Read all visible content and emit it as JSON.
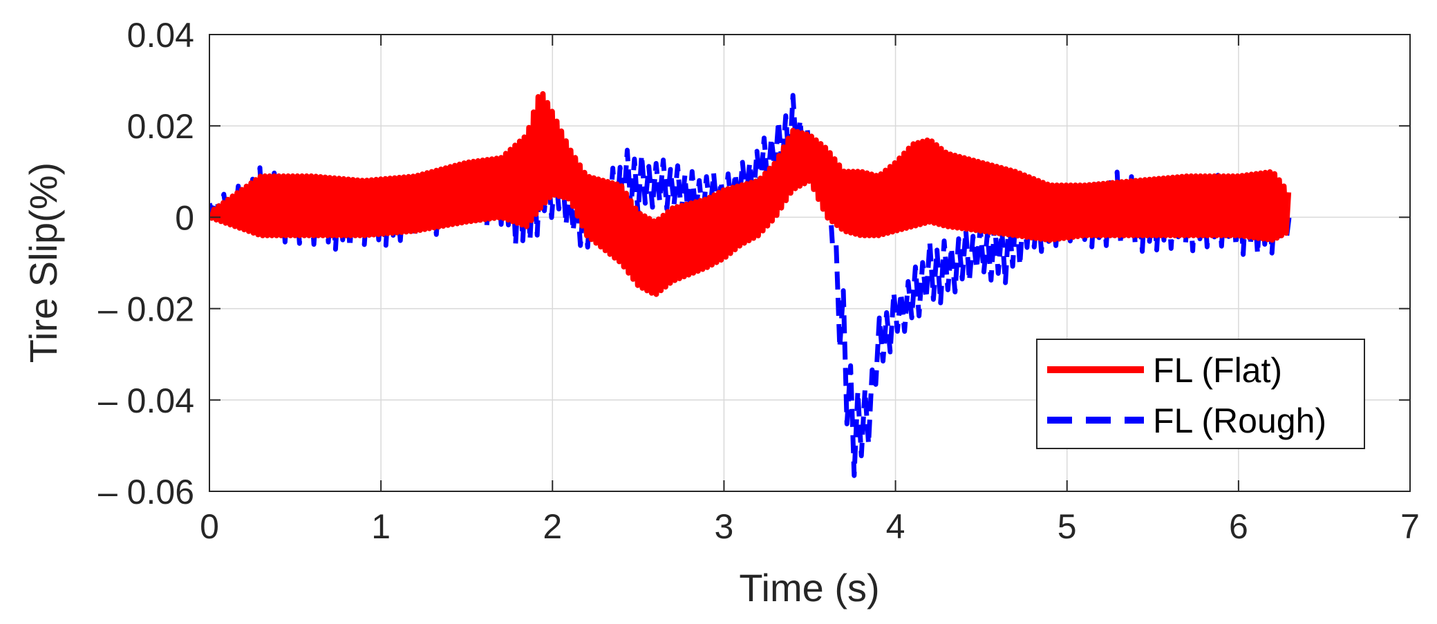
{
  "chart_data": {
    "type": "line",
    "title": "",
    "xlabel": "Time (s)",
    "ylabel": "Tire Slip(%)",
    "xlim": [
      0,
      7
    ],
    "ylim": [
      -0.06,
      0.04
    ],
    "xticks": [
      0,
      1,
      2,
      3,
      4,
      5,
      6,
      7
    ],
    "xtick_labels": [
      "0",
      "1",
      "2",
      "3",
      "4",
      "5",
      "6",
      "7"
    ],
    "yticks": [
      0.04,
      0.02,
      0,
      -0.02,
      -0.04,
      -0.06
    ],
    "ytick_labels": [
      "0.04",
      "0.02",
      "0",
      "– 0.02",
      "– 0.04",
      "– 0.06"
    ],
    "grid": true,
    "legend_position": "bottom-right",
    "series": [
      {
        "name": "FL (Flat)",
        "color": "#ff0000",
        "line_style": "solid",
        "envelope": {
          "x": [
            0,
            0.3,
            0.6,
            0.9,
            1.2,
            1.5,
            1.7,
            1.85,
            1.93,
            2.0,
            2.1,
            2.2,
            2.4,
            2.5,
            2.6,
            2.7,
            2.9,
            3.0,
            3.1,
            3.2,
            3.3,
            3.4,
            3.5,
            3.6,
            3.7,
            3.8,
            3.9,
            4.0,
            4.1,
            4.2,
            4.3,
            4.5,
            4.7,
            4.9,
            5.1,
            5.4,
            5.7,
            6.0,
            6.2,
            6.3
          ],
          "upper": [
            0.001,
            0.009,
            0.009,
            0.008,
            0.009,
            0.012,
            0.013,
            0.018,
            0.028,
            0.023,
            0.015,
            0.009,
            0.007,
            0.001,
            -0.001,
            0.002,
            0.004,
            0.006,
            0.007,
            0.008,
            0.012,
            0.019,
            0.018,
            0.015,
            0.01,
            0.01,
            0.009,
            0.012,
            0.016,
            0.017,
            0.014,
            0.012,
            0.01,
            0.007,
            0.007,
            0.008,
            0.009,
            0.009,
            0.01,
            0.005
          ],
          "lower": [
            0.0,
            -0.004,
            -0.004,
            -0.004,
            -0.003,
            -0.001,
            0.0,
            -0.002,
            0.002,
            0.005,
            0.004,
            -0.004,
            -0.01,
            -0.015,
            -0.017,
            -0.014,
            -0.011,
            -0.009,
            -0.006,
            -0.004,
            0.0,
            0.006,
            0.008,
            0.0,
            -0.003,
            -0.004,
            -0.004,
            -0.003,
            -0.002,
            -0.001,
            -0.002,
            -0.003,
            -0.004,
            -0.005,
            -0.004,
            -0.004,
            -0.004,
            -0.004,
            -0.005,
            -0.003
          ]
        }
      },
      {
        "name": "FL (Rough)",
        "color": "#0000ff",
        "line_style": "dashed",
        "envelope": {
          "x": [
            0,
            0.3,
            0.6,
            0.9,
            1.2,
            1.5,
            1.7,
            1.83,
            1.95,
            2.05,
            2.15,
            2.3,
            2.45,
            2.6,
            2.8,
            3.0,
            3.2,
            3.3,
            3.4,
            3.5,
            3.6,
            3.65,
            3.7,
            3.75,
            3.8,
            3.85,
            3.9,
            4.0,
            4.1,
            4.2,
            4.3,
            4.5,
            4.65,
            4.8,
            5.0,
            5.3,
            5.6,
            5.8,
            6.0,
            6.2,
            6.3
          ],
          "upper": [
            0.003,
            0.011,
            0.008,
            0.007,
            0.008,
            0.01,
            0.012,
            0.012,
            0.016,
            0.01,
            0.006,
            0.008,
            0.016,
            0.013,
            0.011,
            0.009,
            0.016,
            0.02,
            0.028,
            0.019,
            0.01,
            -0.003,
            -0.015,
            -0.03,
            -0.04,
            -0.035,
            -0.022,
            -0.015,
            -0.012,
            -0.005,
            -0.004,
            -0.002,
            0.001,
            0.005,
            0.006,
            0.01,
            0.008,
            0.01,
            0.008,
            0.007,
            0.003
          ],
          "lower": [
            0.001,
            -0.004,
            -0.007,
            -0.007,
            -0.005,
            -0.002,
            -0.002,
            -0.01,
            -0.001,
            0.0,
            -0.008,
            -0.004,
            0.0,
            0.002,
            -0.001,
            0.0,
            0.004,
            0.008,
            0.012,
            0.01,
            0.002,
            -0.012,
            -0.045,
            -0.058,
            -0.055,
            -0.05,
            -0.035,
            -0.027,
            -0.024,
            -0.02,
            -0.018,
            -0.013,
            -0.015,
            -0.008,
            -0.006,
            -0.007,
            -0.008,
            -0.007,
            -0.008,
            -0.009,
            -0.005
          ]
        }
      }
    ]
  }
}
